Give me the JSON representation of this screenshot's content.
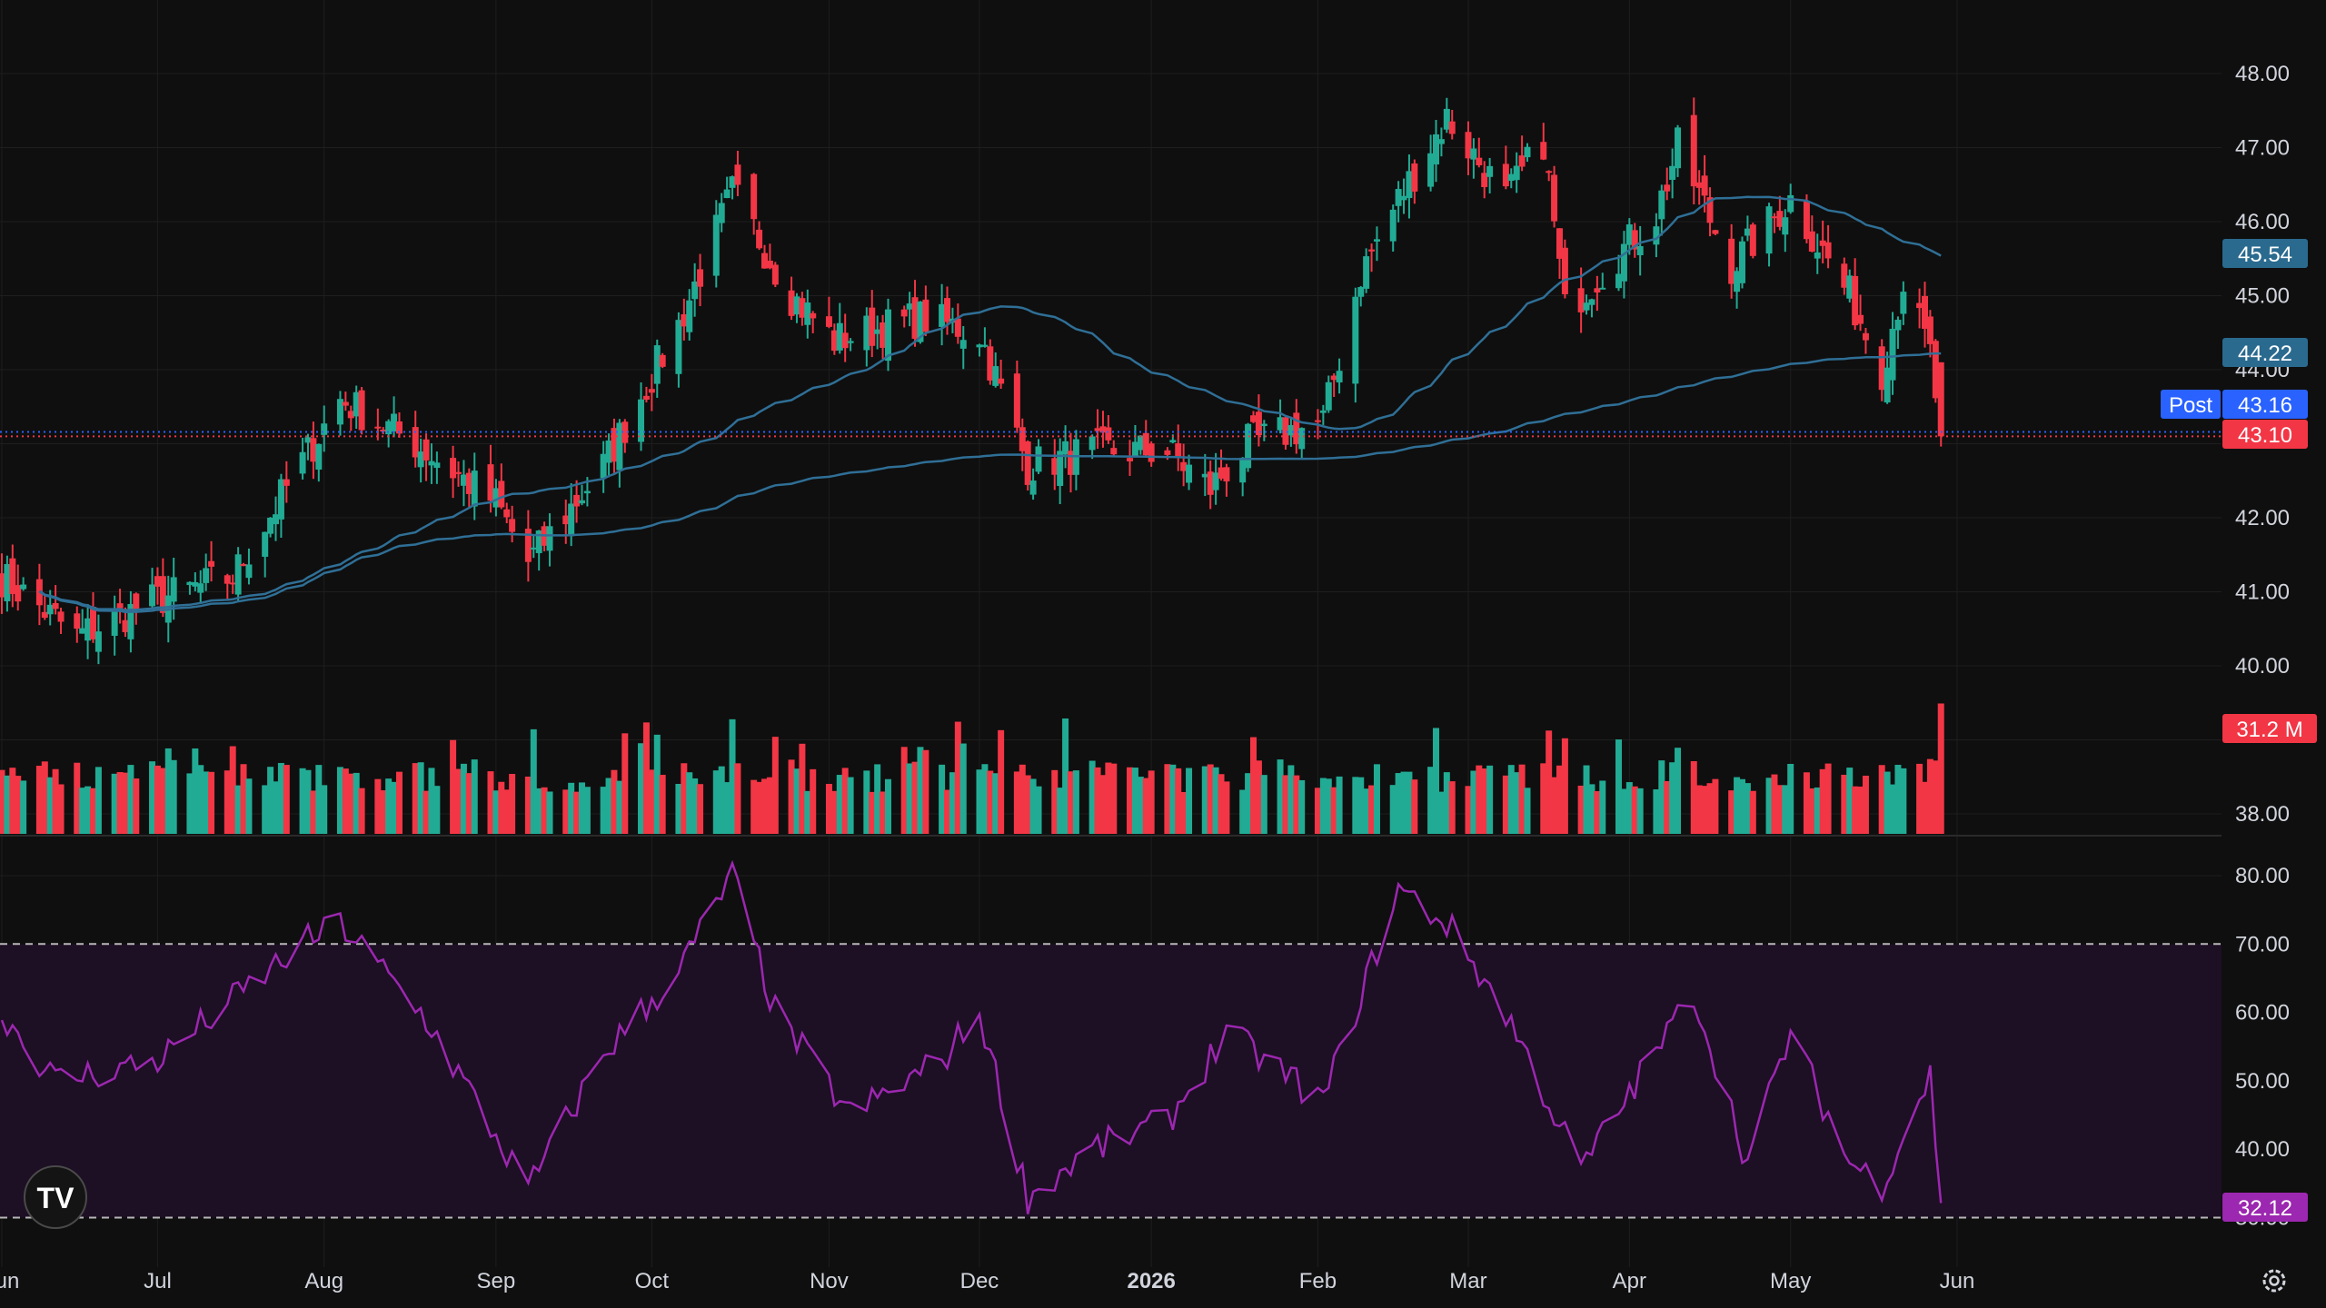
{
  "price_pane": {
    "y_ticks": [
      "48.00",
      "47.00",
      "46.00",
      "45.00",
      "44.00",
      "42.00",
      "41.00",
      "40.00",
      "38.00"
    ],
    "ylim": [
      37.7,
      48.5
    ]
  },
  "rsi_pane": {
    "y_ticks": [
      "80.00",
      "70.00",
      "60.00",
      "50.00",
      "40.00",
      "30.00"
    ],
    "ylim": [
      28,
      85
    ],
    "band": [
      30,
      70
    ]
  },
  "x_axis": {
    "labels": [
      "Jun",
      "Jul",
      "Aug",
      "Sep",
      "Oct",
      "Nov",
      "Dec",
      "2026",
      "Feb",
      "Mar",
      "Apr",
      "May",
      "Jun"
    ],
    "bold_label": "2026"
  },
  "tags": {
    "ma_fast": {
      "text": "45.54",
      "color": "#2a6a8f"
    },
    "ma_slow": {
      "text": "44.22",
      "color": "#2a6a8f"
    },
    "post_label": "Post",
    "post_price": {
      "text": "43.16",
      "color": "#2962ff"
    },
    "last_price": {
      "text": "43.10",
      "color": "#f23645"
    },
    "volume": {
      "text": "31.2 M",
      "color": "#f23645"
    },
    "rsi": {
      "text": "32.12",
      "color": "#9c27b0"
    }
  },
  "colors": {
    "up": "#22ab94",
    "down": "#f23645",
    "ma": "#2f6f96",
    "rsi_line": "#9c27b0",
    "rsi_band": "#1d0f24",
    "grid": "#1e1e1e"
  },
  "logo": {
    "text": "TV"
  },
  "chart_data": {
    "type": "candlestick",
    "series": [
      {
        "name": "price",
        "anchors_date_close": [
          [
            "2025-06-02",
            41.2
          ],
          [
            "2025-06-16",
            40.4
          ],
          [
            "2025-07-01",
            40.9
          ],
          [
            "2025-07-15",
            41.2
          ],
          [
            "2025-07-25",
            42.4
          ],
          [
            "2025-08-04",
            43.6
          ],
          [
            "2025-08-18",
            43.0
          ],
          [
            "2025-09-02",
            42.2
          ],
          [
            "2025-09-08",
            41.4
          ],
          [
            "2025-09-22",
            42.7
          ],
          [
            "2025-10-06",
            44.6
          ],
          [
            "2025-10-16",
            46.4
          ],
          [
            "2025-10-27",
            45.0
          ],
          [
            "2025-11-04",
            44.4
          ],
          [
            "2025-11-20",
            44.7
          ],
          [
            "2025-12-01",
            44.5
          ],
          [
            "2025-12-10",
            42.7
          ],
          [
            "2025-12-22",
            42.9
          ],
          [
            "2026-01-05",
            42.9
          ],
          [
            "2026-01-13",
            42.4
          ],
          [
            "2026-01-20",
            43.0
          ],
          [
            "2026-02-03",
            43.3
          ],
          [
            "2026-02-10",
            45.3
          ],
          [
            "2026-02-17",
            46.3
          ],
          [
            "2026-02-26",
            47.4
          ],
          [
            "2026-03-09",
            46.3
          ],
          [
            "2026-03-16",
            47.1
          ],
          [
            "2026-03-20",
            44.8
          ],
          [
            "2026-04-06",
            46.1
          ],
          [
            "2026-04-10",
            47.0
          ],
          [
            "2026-04-20",
            45.4
          ],
          [
            "2026-05-01",
            46.3
          ],
          [
            "2026-05-12",
            45.0
          ],
          [
            "2026-05-18",
            44.0
          ],
          [
            "2026-05-22",
            45.2
          ],
          [
            "2026-05-27",
            44.2
          ],
          [
            "2026-05-29",
            43.1
          ]
        ]
      },
      {
        "name": "ma_fast",
        "last": 45.54
      },
      {
        "name": "ma_slow",
        "last": 44.22
      },
      {
        "name": "volume",
        "last_millions": 31.2
      },
      {
        "name": "rsi",
        "last": 32.12,
        "anchors_date_value": [
          [
            "2025-06-02",
            60
          ],
          [
            "2025-06-12",
            50
          ],
          [
            "2025-07-01",
            53
          ],
          [
            "2025-07-28",
            70
          ],
          [
            "2025-08-04",
            73
          ],
          [
            "2025-08-20",
            59
          ],
          [
            "2025-09-08",
            34
          ],
          [
            "2025-09-22",
            54
          ],
          [
            "2025-10-06",
            66
          ],
          [
            "2025-10-16",
            80
          ],
          [
            "2025-10-24",
            60
          ],
          [
            "2025-11-07",
            45
          ],
          [
            "2025-11-24",
            53
          ],
          [
            "2025-12-01",
            60
          ],
          [
            "2025-12-10",
            33
          ],
          [
            "2025-12-22",
            40
          ],
          [
            "2026-01-05",
            44
          ],
          [
            "2026-01-16",
            57
          ],
          [
            "2026-02-03",
            47
          ],
          [
            "2026-02-17",
            78
          ],
          [
            "2026-02-26",
            73
          ],
          [
            "2026-03-09",
            60
          ],
          [
            "2026-03-23",
            37
          ],
          [
            "2026-04-13",
            63
          ],
          [
            "2026-04-23",
            38
          ],
          [
            "2026-05-01",
            57
          ],
          [
            "2026-05-12",
            38
          ],
          [
            "2026-05-18",
            35
          ],
          [
            "2026-05-27",
            51
          ],
          [
            "2026-05-29",
            32
          ]
        ]
      }
    ],
    "xlim": [
      "2025-06-01",
      "2026-06-30"
    ],
    "grid": true
  }
}
